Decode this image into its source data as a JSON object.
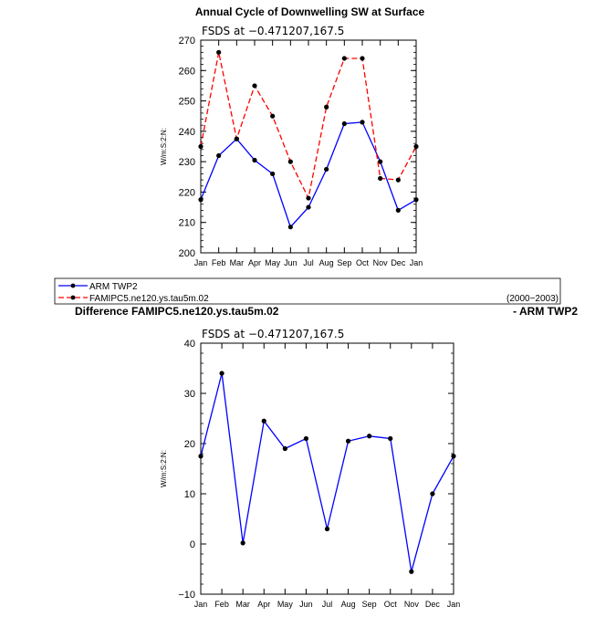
{
  "chart_data": [
    {
      "type": "line",
      "title": "Annual Cycle of Downwelling SW at Surface",
      "subtitle": "FSDS at -0.471207,167.5",
      "ylabel": "W/m:S:2:N:",
      "xlabel": "",
      "categories": [
        "Jan",
        "Feb",
        "Mar",
        "Apr",
        "May",
        "Jun",
        "Jul",
        "Aug",
        "Sep",
        "Oct",
        "Nov",
        "Dec",
        "Jan"
      ],
      "ylim": [
        200,
        270
      ],
      "yticks": [
        200,
        210,
        220,
        230,
        240,
        250,
        260,
        270
      ],
      "grid": false,
      "series": [
        {
          "name": "ARM TWP2",
          "color": "#0000ff",
          "dash": "solid",
          "values": [
            217.5,
            232,
            237.5,
            230.5,
            226,
            208.5,
            215,
            227.5,
            242.5,
            243,
            230,
            214,
            217.5
          ]
        },
        {
          "name": "FAMIPC5.ne120.ys.tau5m.02",
          "color": "#ff0000",
          "dash": "dashed",
          "values": [
            235,
            266,
            237.5,
            255,
            245,
            230,
            218,
            248,
            264,
            264,
            224.5,
            224,
            235
          ]
        }
      ],
      "legend": {
        "placement": "bottom",
        "period": "(2000-2003)"
      }
    },
    {
      "type": "line",
      "title_left": "Difference FAMIPC5.ne120.ys.tau5m.02",
      "title_right": "- ARM TWP2",
      "subtitle": "FSDS at -0.471207,167.5",
      "ylabel": "W/m:S:2:N:",
      "xlabel": "",
      "categories": [
        "Jan",
        "Feb",
        "Mar",
        "Apr",
        "May",
        "Jun",
        "Jul",
        "Aug",
        "Sep",
        "Oct",
        "Nov",
        "Dec",
        "Jan"
      ],
      "ylim": [
        -10,
        40
      ],
      "yticks": [
        -10,
        0,
        10,
        20,
        30,
        40
      ],
      "grid": false,
      "series": [
        {
          "color": "#0000ff",
          "dash": "solid",
          "values": [
            17.5,
            34,
            0.2,
            24.5,
            19,
            21,
            3,
            20.5,
            21.5,
            21,
            -5.5,
            10,
            17.5
          ]
        }
      ]
    }
  ]
}
